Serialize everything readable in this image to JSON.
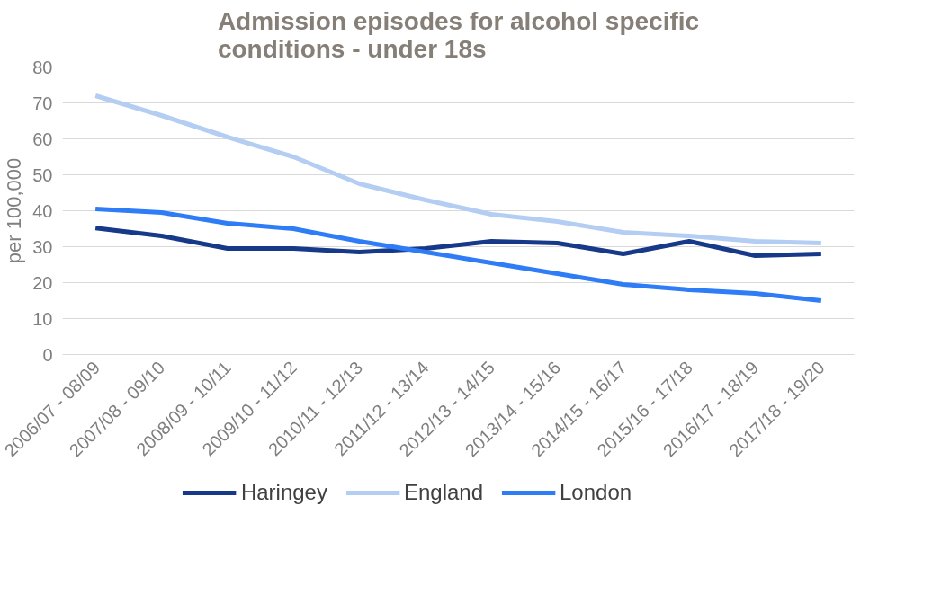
{
  "chart_data": {
    "type": "line",
    "title": "Admission episodes for alcohol specific conditions - under 18s",
    "ylabel": "per 100,000",
    "categories": [
      "2006/07 - 08/09",
      "2007/08 - 09/10",
      "2008/09 - 10/11",
      "2009/10 - 11/12",
      "2010/11 - 12/13",
      "2011/12 - 13/14",
      "2012/13 - 14/15",
      "2013/14 - 15/16",
      "2014/15 - 16/17",
      "2015/16 - 17/18",
      "2016/17 - 18/19",
      "2017/18 - 19/20"
    ],
    "series": [
      {
        "name": "Haringey",
        "color": "#17398a",
        "values": [
          35.2,
          33,
          29.5,
          29.5,
          28.5,
          29.5,
          31.5,
          31,
          28,
          31.5,
          27.5,
          28
        ]
      },
      {
        "name": "England",
        "color": "#b4cdf2",
        "values": [
          72,
          66.5,
          60.5,
          55,
          47.5,
          43,
          39,
          37,
          34,
          33,
          31.5,
          31
        ]
      },
      {
        "name": "London",
        "color": "#2e7cf6",
        "values": [
          40.5,
          39.5,
          36.5,
          35,
          31.5,
          28.5,
          25.5,
          22.5,
          19.5,
          18,
          17,
          15
        ]
      }
    ],
    "ylim": [
      0,
      80
    ],
    "yticks": [
      0,
      10,
      20,
      30,
      40,
      50,
      60,
      70,
      80
    ],
    "grid": "y",
    "legend": "bottom",
    "marker": "none",
    "line_style": "solid"
  }
}
